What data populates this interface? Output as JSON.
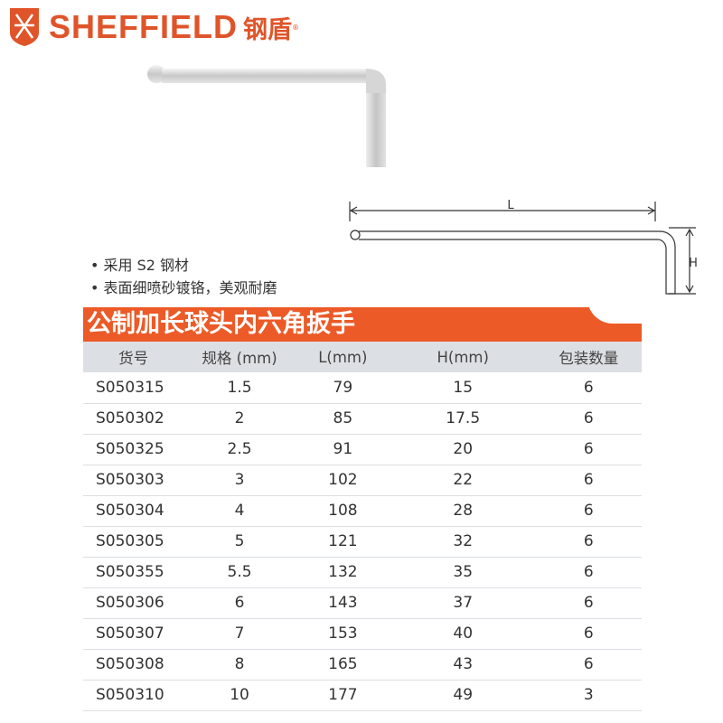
{
  "brand": {
    "name": "SHEFFIELD",
    "cn": "钢盾",
    "reg": "®",
    "color": "#E0542A"
  },
  "diagram": {
    "l_label": "L",
    "h_label": "H"
  },
  "features": [
    "• 采用 S2 钢材",
    "• 表面细喷砂镀铬，美观耐磨"
  ],
  "title": "公制加长球头内六角扳手",
  "accent": "#EC5A27",
  "table": {
    "headers": [
      "货号",
      "规格 (mm)",
      "L(mm)",
      "H(mm)",
      "包装数量"
    ],
    "rows": [
      [
        "S050315",
        "1.5",
        "79",
        "15",
        "6"
      ],
      [
        "S050302",
        "2",
        "85",
        "17.5",
        "6"
      ],
      [
        "S050325",
        "2.5",
        "91",
        "20",
        "6"
      ],
      [
        "S050303",
        "3",
        "102",
        "22",
        "6"
      ],
      [
        "S050304",
        "4",
        "108",
        "28",
        "6"
      ],
      [
        "S050305",
        "5",
        "121",
        "32",
        "6"
      ],
      [
        "S050355",
        "5.5",
        "132",
        "35",
        "6"
      ],
      [
        "S050306",
        "6",
        "143",
        "37",
        "6"
      ],
      [
        "S050307",
        "7",
        "153",
        "40",
        "6"
      ],
      [
        "S050308",
        "8",
        "165",
        "43",
        "6"
      ],
      [
        "S050310",
        "10",
        "177",
        "49",
        "3"
      ]
    ]
  }
}
